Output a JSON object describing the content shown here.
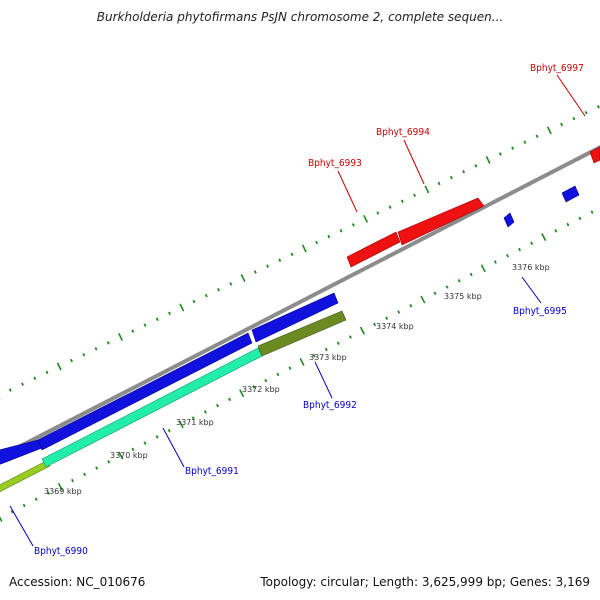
{
  "title": "Burkholderia phytofirmans PsJN chromosome 2, complete sequen...",
  "footer": {
    "accession_label": "Accession:",
    "accession": "NC_010676",
    "summary": "Topology: circular; Length: 3,625,999 bp; Genes: 3,169"
  },
  "colors": {
    "backbone": "#8c8c8c",
    "tick": "#1f8a1f",
    "label_forward": "#cc0000",
    "label_reverse": "#0000cc",
    "gene_red": "#ee1111",
    "gene_blue": "#1111dd",
    "gene_cyan": "#22eeaa",
    "gene_olive": "#6b8a22",
    "gene_lime": "#99cc22"
  },
  "scale": {
    "kbp_labels": [
      "3369 kbp",
      "3370 kbp",
      "3371 kbp",
      "3372 kbp",
      "3373 kbp",
      "3374 kbp",
      "3375 kbp",
      "3376 kbp"
    ]
  },
  "genes": [
    {
      "name": "Bphyt_6990",
      "strand": "reverse",
      "color": "gene_blue"
    },
    {
      "name": "Bphyt_6991",
      "strand": "reverse",
      "color": "gene_cyan"
    },
    {
      "name": "Bphyt_6992",
      "strand": "reverse",
      "color": "gene_olive"
    },
    {
      "name": "Bphyt_6993",
      "strand": "forward",
      "color": "gene_red"
    },
    {
      "name": "Bphyt_6994",
      "strand": "forward",
      "color": "gene_red"
    },
    {
      "name": "Bphyt_6995",
      "strand": "reverse",
      "color": "gene_blue"
    },
    {
      "name": "Bphyt_6997",
      "strand": "forward",
      "color": "gene_red"
    }
  ]
}
